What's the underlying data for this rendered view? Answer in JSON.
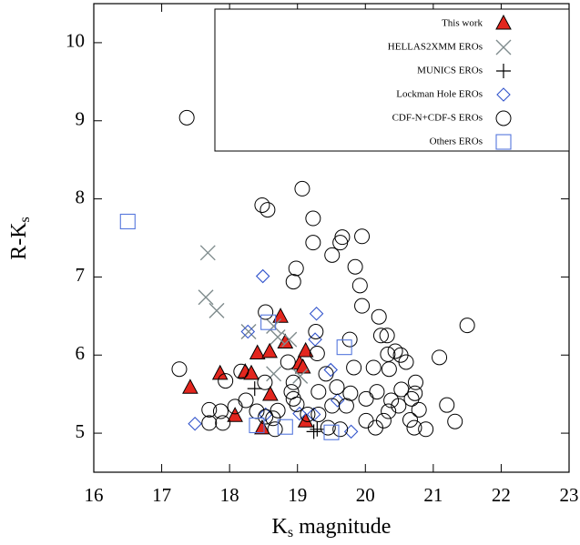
{
  "chart_data": {
    "type": "scatter",
    "xlabel": {
      "main": "K",
      "sub": "s",
      "rest": " magnitude"
    },
    "ylabel": {
      "main": "R-K",
      "sub": "s"
    },
    "xlim": [
      16,
      23
    ],
    "xticks": [
      16,
      17,
      18,
      19,
      20,
      21,
      22,
      23
    ],
    "ylim": [
      4.5,
      10.5
    ],
    "yticks": [
      5,
      6,
      7,
      8,
      9,
      10
    ],
    "legend": "upper right",
    "series": [
      {
        "name": "This work",
        "marker": "triangle",
        "color": "#e3261e",
        "x": [
          17.42,
          17.86,
          18.08,
          18.23,
          18.32,
          18.41,
          18.48,
          18.59,
          18.6,
          18.75,
          18.82,
          19.03,
          19.08,
          19.12,
          19.12
        ],
        "values": [
          5.58,
          5.76,
          5.22,
          5.78,
          5.76,
          6.02,
          5.06,
          6.04,
          5.49,
          6.49,
          6.16,
          5.89,
          5.84,
          6.05,
          5.15
        ]
      },
      {
        "name": "HELLAS2XMM EROs",
        "marker": "x",
        "color": "#7f8c8d",
        "x": [
          17.68,
          17.65,
          17.81,
          18.28,
          18.65,
          18.71,
          18.88,
          18.65,
          19.04
        ],
        "values": [
          7.31,
          6.74,
          6.57,
          6.3,
          6.37,
          6.23,
          6.2,
          5.76,
          5.73
        ]
      },
      {
        "name": "MUNICS EROs",
        "marker": "plus",
        "color": "#000000",
        "x": [
          18.37,
          19.24,
          19.29
        ],
        "values": [
          5.57,
          5.02,
          5.05
        ]
      },
      {
        "name": "Lockman Hole EROs",
        "marker": "diamond",
        "color": "#3355cc",
        "x": [
          17.49,
          18.49,
          18.27,
          19.03,
          19.24,
          19.28,
          19.26,
          19.49,
          19.59,
          19.79,
          18.53
        ],
        "values": [
          5.12,
          7.01,
          6.3,
          5.25,
          5.24,
          6.53,
          6.2,
          5.81,
          5.42,
          5.02,
          5.24
        ]
      },
      {
        "name": "CDF-N+CDF-S EROs",
        "marker": "circle",
        "color": "#000000",
        "x": [
          17.37,
          18.48,
          18.56,
          19.07,
          19.23,
          19.23,
          19.63,
          19.66,
          19.95,
          19.51,
          18.98,
          18.94,
          19.85,
          19.92,
          19.95,
          18.53,
          19.27,
          20.2,
          21.5,
          17.26,
          17.94,
          18.17,
          19.77,
          20.23,
          20.32,
          20.33,
          20.44,
          20.52,
          20.35,
          20.6,
          21.09,
          20.12,
          19.83,
          18.94,
          18.91,
          18.94,
          19.31,
          19.42,
          19.58,
          19.78,
          20.01,
          20.17,
          20.38,
          20.49,
          20.53,
          20.68,
          20.73,
          20.79,
          20.34,
          20.27,
          20.15,
          20.01,
          19.72,
          19.51,
          19.31,
          19.45,
          19.63,
          19.15,
          18.99,
          18.71,
          18.64,
          18.53,
          18.67,
          18.4,
          18.24,
          18.08,
          17.9,
          17.7,
          17.7,
          17.87,
          20.72,
          20.89,
          21.2,
          21.32,
          18.52,
          18.86,
          19.29,
          20.74,
          20.66
        ],
        "values": [
          9.04,
          7.92,
          7.86,
          8.13,
          7.75,
          7.44,
          7.44,
          7.51,
          7.52,
          7.28,
          7.11,
          6.94,
          7.13,
          6.89,
          6.63,
          6.55,
          6.3,
          6.49,
          6.38,
          5.82,
          5.67,
          5.79,
          6.2,
          6.25,
          6.25,
          6.01,
          6.05,
          6.0,
          5.82,
          5.91,
          5.97,
          5.84,
          5.84,
          5.65,
          5.53,
          5.44,
          5.53,
          5.76,
          5.59,
          5.51,
          5.44,
          5.53,
          5.42,
          5.35,
          5.56,
          5.44,
          5.51,
          5.3,
          5.28,
          5.16,
          5.07,
          5.16,
          5.35,
          5.35,
          5.24,
          5.07,
          5.05,
          5.24,
          5.37,
          5.29,
          5.19,
          5.21,
          5.05,
          5.28,
          5.42,
          5.34,
          5.13,
          5.3,
          5.13,
          5.28,
          5.07,
          5.05,
          5.36,
          5.15,
          5.65,
          5.91,
          6.02,
          5.65,
          5.17
        ]
      },
      {
        "name": "Others EROs",
        "marker": "square",
        "color": "#5577dd",
        "x": [
          16.5,
          18.57,
          19.69,
          18.4,
          18.82,
          19.5
        ],
        "values": [
          7.71,
          6.42,
          6.1,
          5.1,
          5.08,
          5.01
        ]
      }
    ]
  }
}
